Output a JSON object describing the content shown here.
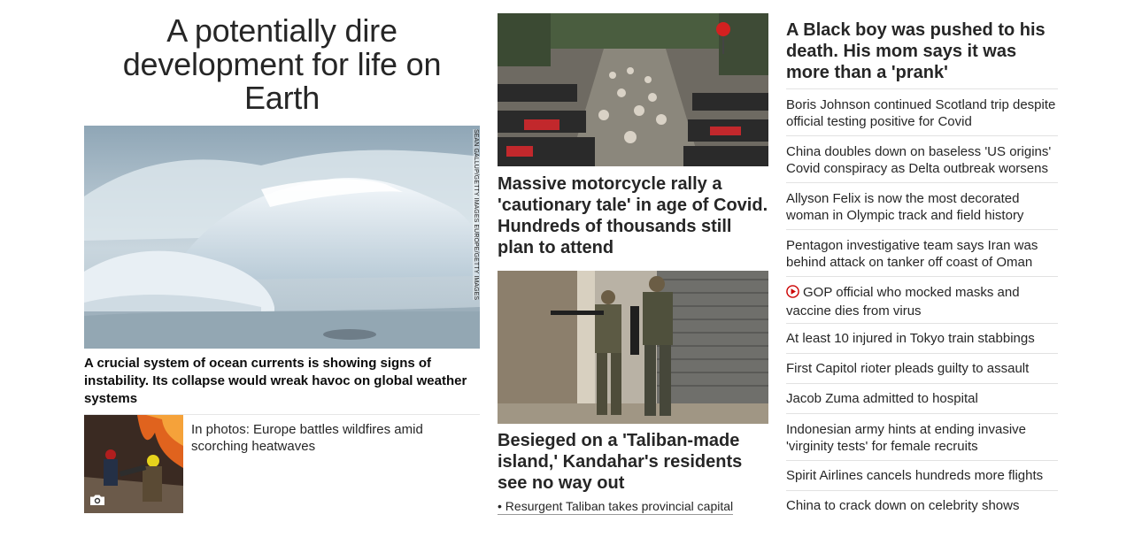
{
  "lead": {
    "title": "A potentially dire development for life on Earth",
    "image_credit": "SEAN GALLUP/GETTY IMAGES EUROPE/GETTY IMAGES",
    "subheadline": "A crucial system of ocean currents is showing signs of instability. Its collapse would wreak havoc on global weather systems",
    "gallery_caption": "In photos: Europe battles wildfires amid scorching heatwaves"
  },
  "middle": {
    "rally_headline": "Massive motorcycle rally a 'cautionary tale' in age of Covid. Hundreds of thousands still plan to attend",
    "kandahar_headline": "Besieged on a 'Taliban-made island,' Kandahar's residents see no way out",
    "related_link": "• Resurgent Taliban takes provincial capital"
  },
  "right": {
    "top_headline": "A Black boy was pushed to his death. His mom says it was more than a 'prank'",
    "headlines": [
      "Boris Johnson continued Scotland trip despite official testing positive for Covid",
      "China doubles down on baseless 'US origins' Covid conspiracy as Delta outbreak worsens",
      "Allyson Felix is now the most decorated woman in Olympic track and field history",
      "Pentagon investigative team says Iran was behind attack on tanker off coast of Oman",
      "GOP official who mocked masks and vaccine dies from virus",
      "At least 10 injured in Tokyo train stabbings",
      "First Capitol rioter pleads guilty to assault",
      "Jacob Zuma admitted to hospital",
      "Indonesian army hints at ending invasive 'virginity tests' for female recruits",
      "Spirit Airlines cancels hundreds more flights",
      "China to crack down on celebrity shows"
    ]
  },
  "icons": {
    "camera": "camera-icon",
    "video": "play-icon"
  },
  "colors": {
    "text": "#262626",
    "video_icon": "#cc0000",
    "divider": "#e2e2e2"
  }
}
